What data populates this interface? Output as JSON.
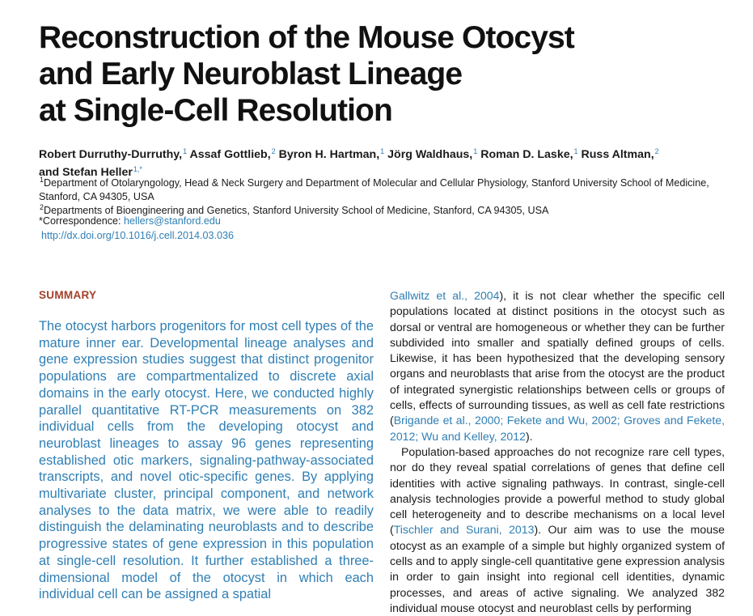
{
  "title": {
    "line1": "Reconstruction of the Mouse Otocyst",
    "line2": "and Early Neuroblast Lineage",
    "line3": "at Single-Cell Resolution"
  },
  "authors": [
    {
      "name": "Robert Durruthy-Durruthy,",
      "sup": "1"
    },
    {
      "name": "Assaf Gottlieb,",
      "sup": "2"
    },
    {
      "name": "Byron H. Hartman,",
      "sup": "1"
    },
    {
      "name": "Jörg Waldhaus,",
      "sup": "1"
    },
    {
      "name": "Roman D. Laske,",
      "sup": "1"
    },
    {
      "name": "Russ Altman,",
      "sup": "2"
    },
    {
      "name": "and Stefan Heller",
      "sup": "1,*"
    }
  ],
  "affiliations": {
    "a1_sup": "1",
    "a1": "Department of Otolaryngology, Head & Neck Surgery and Department of Molecular and Cellular Physiology, Stanford University School of Medicine, Stanford, CA 94305, USA",
    "a2_sup": "2",
    "a2": "Departments of Bioengineering and Genetics, Stanford University School of Medicine, Stanford, CA 94305, USA",
    "correspondence_label": "*Correspondence: ",
    "email": "hellers@stanford.edu",
    "doi": "http://dx.doi.org/10.1016/j.cell.2014.03.036"
  },
  "summary": {
    "heading": "SUMMARY",
    "text": "The otocyst harbors progenitors for most cell types of the mature inner ear. Developmental lineage analyses and gene expression studies suggest that distinct progenitor populations are compartmentalized to discrete axial domains in the early otocyst. Here, we conducted highly parallel quantitative RT-PCR measurements on 382 individual cells from the developing otocyst and neuroblast lineages to assay 96 genes representing established otic markers, signaling-pathway-associated transcripts, and novel otic-specific genes. By applying multivariate cluster, principal component, and network analyses to the data matrix, we were able to readily distinguish the delaminating neuroblasts and to describe progressive states of gene expression in this population at single-cell resolution. It further established a three-dimensional model of the otocyst in which each individual cell can be assigned a spatial"
  },
  "body": {
    "p1_ref1": "Gallwitz et al., 2004",
    "p1_a": "), it is not clear whether the specific cell populations located at distinct positions in the otocyst such as dorsal or ventral are homogeneous or whether they can be further subdivided into smaller and spatially defined groups of cells. Likewise, it has been hypothesized that the developing sensory organs and neuroblasts that arise from the otocyst are the product of integrated synergistic relationships between cells or groups of cells, effects of surrounding tissues, as well as cell fate restrictions (",
    "p1_ref2": "Brigande et al., 2000; Fekete and Wu, 2002; Groves and Fekete, 2012; Wu and Kelley, 2012",
    "p1_b": ").",
    "p2_a": "Population-based approaches do not recognize rare cell types, nor do they reveal spatial correlations of genes that define cell identities with active signaling pathways. In contrast, single-cell analysis technologies provide a powerful method to study global cell heterogeneity and to describe mechanisms on a local level (",
    "p2_ref1": "Tischler and Surani, 2013",
    "p2_b": "). Our aim was to use the mouse otocyst as an example of a simple but highly organized system of cells and to apply single-cell quantitative gene expression analysis in order to gain insight into regional cell identities, dynamic processes, and areas of active signaling. We analyzed 382 individual mouse otocyst and neuroblast cells by performing"
  }
}
